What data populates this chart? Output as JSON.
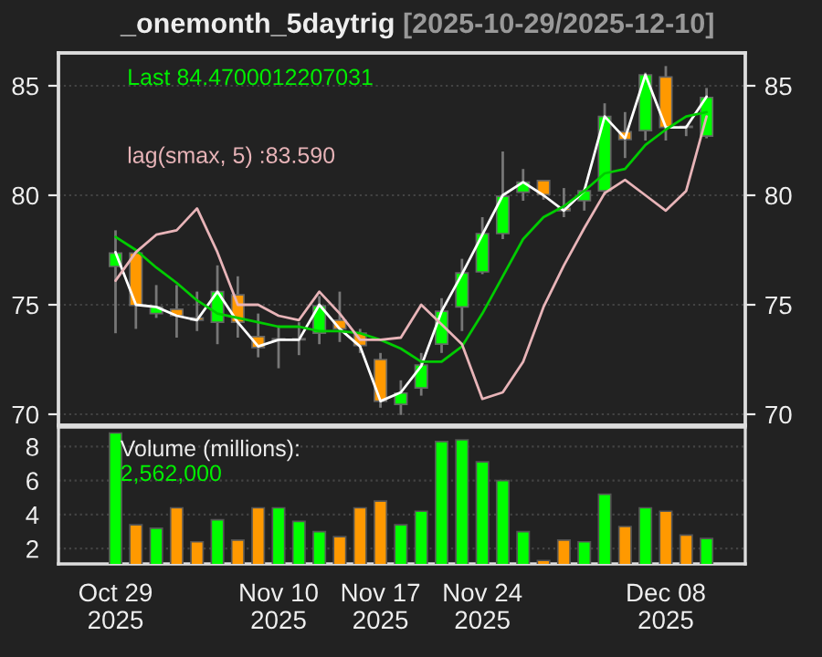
{
  "chart_data": [
    {
      "type": "candlestick",
      "title": "_onemonth_5daytrig",
      "subtitle": "[2025-10-29/2025-12-10]",
      "categories": [
        null,
        null,
        null,
        null,
        null,
        null,
        null,
        null,
        null,
        null,
        null,
        null,
        null,
        null,
        null,
        null,
        null,
        null,
        null,
        null,
        null,
        null,
        null,
        null,
        null,
        null,
        null,
        null,
        null,
        null
      ],
      "ohlc": [
        [
          76.75,
          78.4,
          73.7,
          77.36
        ],
        [
          77.36,
          77.4,
          73.9,
          74.97
        ],
        [
          74.6,
          75.9,
          74.4,
          74.9
        ],
        [
          74.8,
          75.9,
          73.5,
          74.5
        ],
        [
          74.4,
          75.6,
          73.8,
          74.3
        ],
        [
          74.2,
          76.8,
          73.2,
          75.6
        ],
        [
          75.45,
          76.3,
          73.5,
          74.2
        ],
        [
          73.55,
          74.6,
          72.6,
          73.05
        ],
        [
          73.4,
          74.05,
          72.1,
          73.45
        ],
        [
          73.4,
          74.2,
          72.7,
          73.45
        ],
        [
          73.7,
          75.4,
          73.2,
          74.95
        ],
        [
          74.3,
          75.6,
          73.3,
          73.9
        ],
        [
          73.7,
          73.9,
          72.8,
          73.14
        ],
        [
          72.5,
          72.8,
          70.3,
          70.6
        ],
        [
          70.45,
          71.55,
          69.97,
          70.97
        ],
        [
          71.2,
          72.8,
          70.85,
          72.25
        ],
        [
          73.2,
          75.3,
          72.8,
          74.7
        ],
        [
          74.9,
          77.1,
          73.8,
          76.45
        ],
        [
          76.5,
          79.0,
          76.4,
          78.25
        ],
        [
          78.25,
          82.0,
          78.0,
          79.95
        ],
        [
          80.14,
          81.2,
          79.75,
          80.6
        ],
        [
          80.67,
          80.7,
          79.8,
          80.03
        ],
        [
          79.4,
          80.33,
          79.0,
          79.3
        ],
        [
          79.75,
          80.3,
          79.3,
          80.2
        ],
        [
          80.2,
          84.2,
          80.0,
          83.6
        ],
        [
          82.9,
          83.8,
          81.7,
          82.55
        ],
        [
          82.95,
          85.6,
          82.5,
          85.5
        ],
        [
          85.4,
          85.9,
          82.5,
          83.1
        ],
        [
          83.15,
          83.2,
          82.7,
          83.1
        ],
        [
          82.7,
          84.9,
          82.6,
          84.47
        ]
      ],
      "series": [
        {
          "type": "line",
          "color": "#ffffff",
          "values": [
            77.4,
            75.0,
            74.9,
            74.5,
            74.3,
            75.6,
            74.2,
            73.1,
            73.4,
            73.4,
            75.0,
            73.9,
            73.1,
            70.6,
            71.0,
            72.2,
            74.7,
            76.4,
            78.2,
            80.0,
            80.6,
            80.0,
            79.3,
            80.2,
            83.6,
            82.6,
            85.5,
            83.1,
            83.1,
            84.5
          ]
        },
        {
          "type": "line",
          "color": "#00cc00",
          "values": [
            78.1,
            77.5,
            76.7,
            76.0,
            75.2,
            74.6,
            74.4,
            74.2,
            74.0,
            74.0,
            73.8,
            73.8,
            73.7,
            73.4,
            73.0,
            72.4,
            72.4,
            73.1,
            74.6,
            76.3,
            78.0,
            79.0,
            79.5,
            80.2,
            81.0,
            81.2,
            82.3,
            83.0,
            83.6,
            83.8
          ]
        },
        {
          "type": "line",
          "color": "#e8b4b8",
          "values": [
            76.1,
            77.4,
            78.2,
            78.4,
            79.4,
            77.4,
            75.0,
            75.0,
            74.5,
            74.3,
            75.6,
            74.6,
            73.4,
            73.4,
            73.5,
            75.0,
            74.1,
            73.2,
            70.7,
            71.0,
            72.4,
            74.9,
            76.8,
            78.5,
            80.1,
            80.7,
            80.0,
            79.3,
            80.2,
            83.6
          ]
        }
      ],
      "annotations": [
        "Last 84.4700012207031",
        "lag(smax, 5) :83.590"
      ],
      "ylim": [
        69.5,
        86.5
      ],
      "yticks": [
        70,
        75,
        80,
        85
      ],
      "y2lim": [
        69.5,
        86.5
      ],
      "y2ticks": [
        70,
        75,
        80,
        85
      ],
      "grid": "y",
      "tick_labels": "y"
    },
    {
      "type": "bar",
      "categories": [
        "Oct 29\n2025",
        null,
        null,
        null,
        null,
        null,
        null,
        null,
        "Nov 10\n2025",
        null,
        null,
        null,
        null,
        "Nov 17\n2025",
        null,
        null,
        null,
        null,
        "Nov 24\n2025",
        null,
        null,
        null,
        null,
        null,
        null,
        null,
        null,
        "Dec 08\n2025",
        null,
        null
      ],
      "values": [
        8.8,
        3.4,
        3.2,
        4.4,
        2.4,
        3.7,
        2.5,
        4.4,
        4.4,
        3.6,
        3.0,
        2.7,
        4.4,
        4.8,
        3.4,
        4.2,
        8.3,
        8.4,
        7.1,
        6.0,
        3.0,
        1.3,
        2.5,
        2.4,
        5.2,
        3.3,
        4.4,
        4.2,
        2.8,
        2.6
      ],
      "colors": [
        "#00ff00",
        "#ff9900",
        "#00ff00",
        "#ff9900",
        "#ff9900",
        "#00ff00",
        "#ff9900",
        "#ff9900",
        "#00ff00",
        "#00ff00",
        "#00ff00",
        "#ff9900",
        "#ff9900",
        "#ff9900",
        "#00ff00",
        "#00ff00",
        "#00ff00",
        "#00ff00",
        "#00ff00",
        "#00ff00",
        "#00ff00",
        "#ff9900",
        "#ff9900",
        "#00ff00",
        "#00ff00",
        "#ff9900",
        "#00ff00",
        "#ff9900",
        "#ff9900",
        "#00ff00"
      ],
      "annotations": [
        "Volume (millions):",
        "2,562,000"
      ],
      "ylim": [
        1.1,
        9.15
      ],
      "yticks": [
        2,
        4,
        6,
        8
      ],
      "grid": "y"
    }
  ]
}
